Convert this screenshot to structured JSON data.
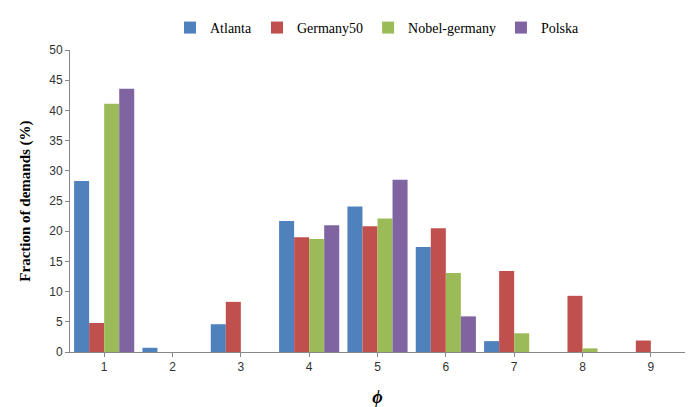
{
  "chart_data": {
    "type": "bar",
    "x_label": "ϕ",
    "y_label": "Fraction of demands (%)",
    "categories": [
      "1",
      "2",
      "3",
      "4",
      "5",
      "6",
      "7",
      "8",
      "9"
    ],
    "series": [
      {
        "name": "Atlanta",
        "color": "#4f81bd",
        "values": [
          28.3,
          0.7,
          4.6,
          21.7,
          24.1,
          17.4,
          1.8,
          0,
          0
        ]
      },
      {
        "name": "Germany50",
        "color": "#c0504d",
        "values": [
          4.8,
          0,
          8.3,
          19,
          20.8,
          20.5,
          13.4,
          9.3,
          1.9
        ]
      },
      {
        "name": "Nobel-germany",
        "color": "#9bbb59",
        "values": [
          41.1,
          0,
          0,
          18.7,
          22.1,
          13.1,
          3.1,
          0.6,
          0
        ]
      },
      {
        "name": "Polska",
        "color": "#8064a2",
        "values": [
          43.6,
          0,
          0,
          21,
          28.5,
          5.9,
          0,
          0,
          0
        ]
      }
    ],
    "ylim": [
      0,
      50
    ],
    "yticks": [
      0,
      5,
      10,
      15,
      20,
      25,
      30,
      35,
      40,
      45,
      50
    ],
    "grid": false,
    "legend": "top"
  }
}
